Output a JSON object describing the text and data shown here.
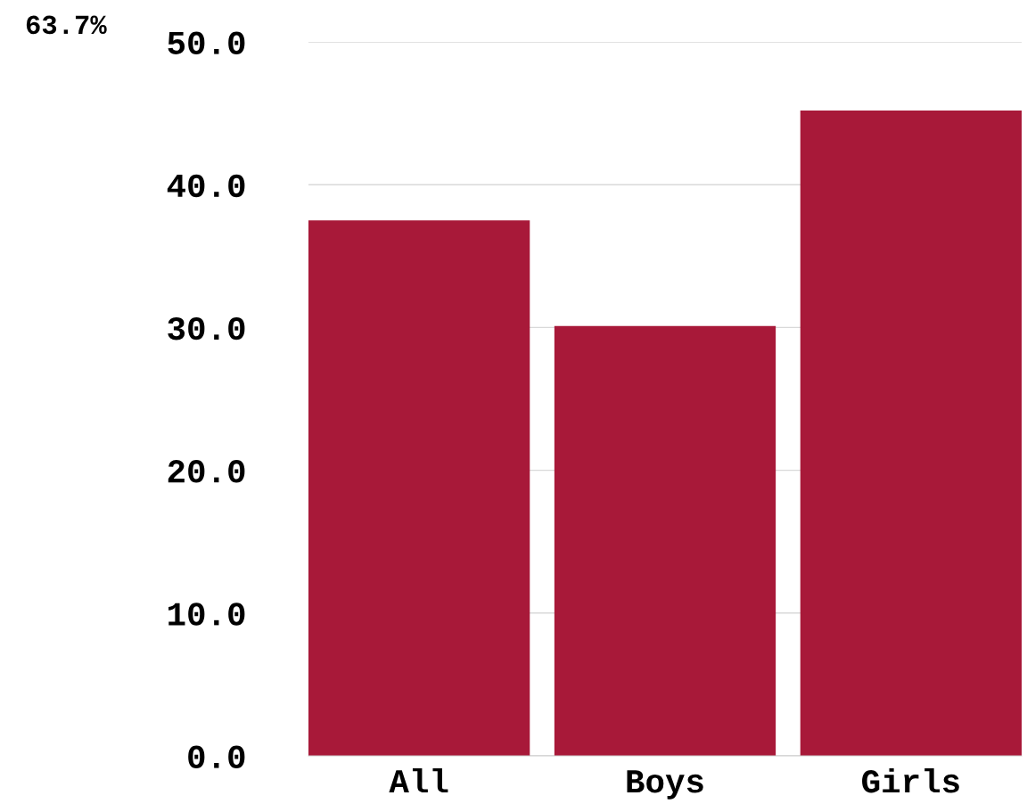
{
  "chart_data": {
    "type": "bar",
    "categories": [
      "All",
      "Boys",
      "Girls"
    ],
    "values": [
      37.5,
      30.1,
      45.2
    ],
    "color": "#a81939",
    "ylim": [
      0,
      50
    ],
    "yticks": [
      {
        "value": 0,
        "label": "0.0"
      },
      {
        "value": 10,
        "label": "10.0"
      },
      {
        "value": 20,
        "label": "20.0"
      },
      {
        "value": 30,
        "label": "30.0"
      },
      {
        "value": 40,
        "label": "40.0"
      },
      {
        "value": 50,
        "label": "50.0"
      }
    ],
    "grid": "y",
    "annotations": [
      "63.7%"
    ]
  }
}
